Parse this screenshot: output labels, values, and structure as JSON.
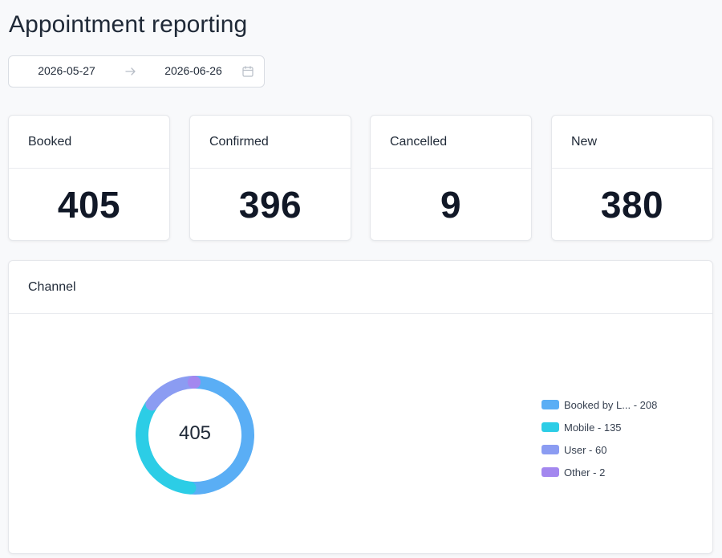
{
  "page": {
    "title": "Appointment reporting"
  },
  "date_range": {
    "start": "2026-05-27",
    "end": "2026-06-26"
  },
  "stats": [
    {
      "label": "Booked",
      "value": "405"
    },
    {
      "label": "Confirmed",
      "value": "396"
    },
    {
      "label": "Cancelled",
      "value": "9"
    },
    {
      "label": "New",
      "value": "380"
    }
  ],
  "channel": {
    "title": "Channel",
    "total": "405",
    "legend": [
      {
        "label": "Booked by L... - 208",
        "color": "#5aaef5"
      },
      {
        "label": "Mobile - 135",
        "color": "#2ccde6"
      },
      {
        "label": "User - 60",
        "color": "#8b9cf2"
      },
      {
        "label": "Other - 2",
        "color": "#a387ef"
      }
    ]
  },
  "chart_data": {
    "type": "pie",
    "title": "Channel",
    "categories": [
      "Booked by L...",
      "Mobile",
      "User",
      "Other"
    ],
    "values": [
      208,
      135,
      60,
      2
    ],
    "colors": [
      "#5aaef5",
      "#2ccde6",
      "#8b9cf2",
      "#a387ef"
    ],
    "donut": true,
    "center_label": "405",
    "legend_position": "right"
  }
}
